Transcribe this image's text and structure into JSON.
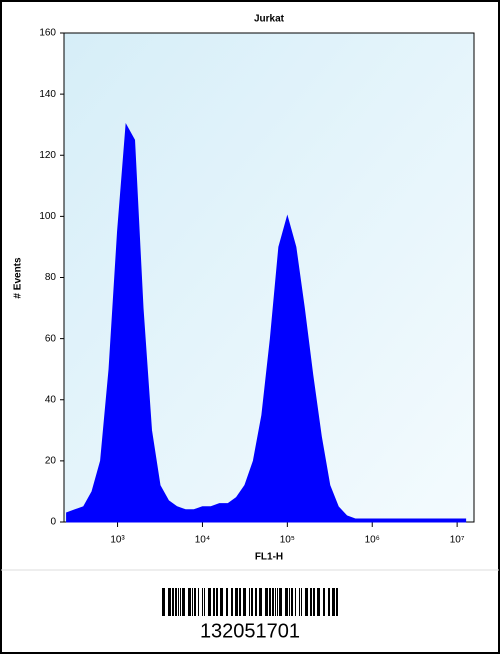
{
  "chart_data": {
    "type": "area",
    "title": "Jurkat",
    "x_label": "FL1-H",
    "y_label": "# Events",
    "x": [
      251,
      316,
      398,
      501,
      631,
      794,
      1000,
      1259,
      1585,
      1995,
      2512,
      3162,
      3981,
      5012,
      6310,
      7943,
      10000,
      12589,
      15849,
      19953,
      25119,
      31623,
      39811,
      50119,
      63096,
      79433,
      100000,
      125893,
      158489,
      199526,
      251189,
      316228,
      398107,
      501187,
      630957,
      794328,
      1000000,
      1258925,
      1584893,
      1995262,
      2511886,
      3162278,
      3981072,
      5011872,
      6309573,
      7943282,
      10000000,
      12589254
    ],
    "values": [
      3,
      4,
      5,
      10,
      20,
      50,
      95,
      130,
      125,
      70,
      30,
      12,
      7,
      5,
      4,
      4,
      5,
      5,
      6,
      6,
      8,
      12,
      20,
      35,
      60,
      90,
      100,
      90,
      70,
      48,
      28,
      12,
      5,
      2,
      1,
      1,
      1,
      1,
      1,
      1,
      1,
      1,
      1,
      1,
      1,
      1,
      1,
      1
    ],
    "color": "#0000ff",
    "xscale": "log",
    "xlim": [
      234,
      15800000
    ],
    "xticks": [
      {
        "value": 1000,
        "label": "10³"
      },
      {
        "value": 10000,
        "label": "10⁴"
      },
      {
        "value": 100000,
        "label": "10⁵"
      },
      {
        "value": 1000000,
        "label": "10⁶"
      },
      {
        "value": 10000000,
        "label": "10⁷"
      }
    ],
    "ylim": [
      0,
      160
    ],
    "yticks": [
      0,
      20,
      40,
      60,
      80,
      100,
      120,
      140,
      160
    ]
  },
  "footer": {
    "barcode_text": "132051701"
  }
}
